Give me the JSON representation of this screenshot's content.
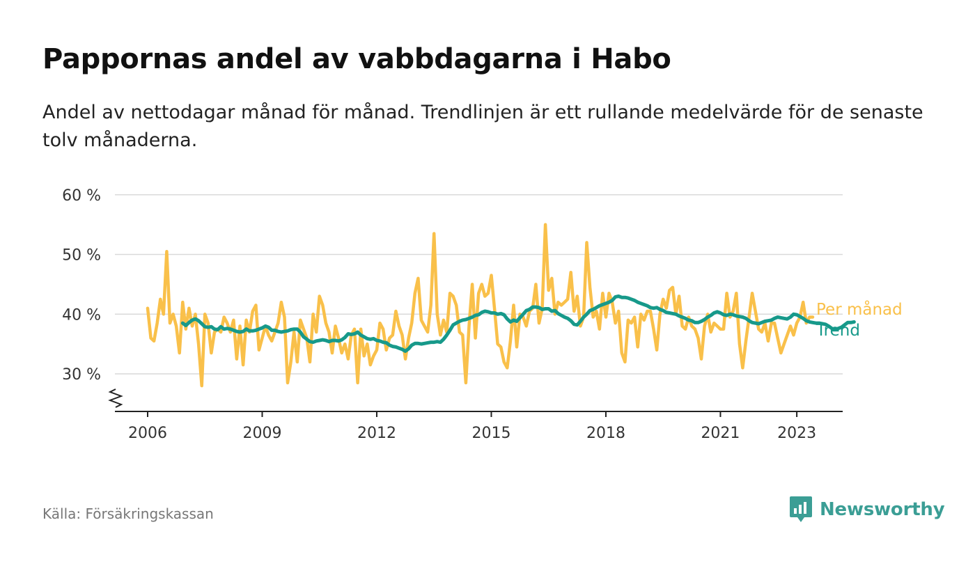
{
  "header": {
    "title": "Pappornas andel av vabbdagarna i Habo",
    "subtitle": "Andel av nettodagar månad för månad. Trendlinjen är ett rullande medelvärde för de senaste tolv månaderna."
  },
  "footer": {
    "source": "Källa: Försäkringskassan",
    "brand": "Newsworthy",
    "brand_icon": "newsworthy-logo-icon"
  },
  "chart_data": {
    "type": "line",
    "x_ticks": [
      "2006",
      "2009",
      "2012",
      "2015",
      "2018",
      "2021",
      "2023"
    ],
    "y_ticks": [
      "30 %",
      "40 %",
      "50 %",
      "60 %"
    ],
    "ylim": [
      25,
      60
    ],
    "y_tick_values": [
      30,
      40,
      50,
      60
    ],
    "y_axis_break": true,
    "grid": true,
    "legend": "line-end labels, right",
    "series": [
      {
        "name": "Per månad",
        "color": "#f9c04a",
        "values": [
          41,
          36,
          35.5,
          38.5,
          42.5,
          40,
          50.5,
          38.5,
          40,
          38,
          33.5,
          42,
          37.5,
          41,
          38,
          40,
          35,
          28,
          40,
          38.5,
          33.5,
          37,
          37.5,
          37,
          39.5,
          38.5,
          37,
          39,
          32.5,
          38,
          31.5,
          39,
          37,
          40.5,
          41.5,
          34,
          36,
          38,
          36.5,
          35.5,
          37,
          38.5,
          42,
          39.5,
          28.5,
          32,
          37,
          32,
          39,
          37.5,
          36,
          32,
          40,
          37,
          43,
          41.5,
          38.5,
          37,
          33.5,
          38,
          36,
          33.5,
          35,
          32.5,
          36.5,
          37.5,
          28.5,
          37.5,
          33,
          35,
          31.5,
          33,
          34,
          38.5,
          37.5,
          34,
          36,
          36.5,
          40.5,
          38,
          36.5,
          32.5,
          36,
          38.5,
          43.5,
          46,
          39,
          38,
          37,
          41.5,
          53.5,
          40,
          36.5,
          39,
          37,
          43.5,
          43,
          41.5,
          37,
          36.5,
          28.5,
          38,
          45,
          36,
          43.5,
          45,
          43,
          43.5,
          46.5,
          41,
          35,
          34.5,
          32,
          31,
          35.5,
          41.5,
          34.5,
          40,
          39.5,
          38,
          40.5,
          41,
          45,
          38.5,
          41,
          55,
          44,
          46,
          40,
          42,
          41.5,
          42,
          42.5,
          47,
          40.5,
          43,
          38,
          39.5,
          52,
          44.5,
          39.5,
          40.5,
          37.5,
          43.5,
          39.5,
          43.5,
          42,
          38.5,
          40.5,
          33.5,
          32,
          39,
          38.5,
          39.5,
          34.5,
          40,
          39,
          40.5,
          40.5,
          37.5,
          34,
          40,
          42.5,
          41,
          44,
          44.5,
          40,
          43,
          38,
          37.5,
          39.5,
          38,
          37.5,
          36,
          32.5,
          38,
          40,
          37,
          38.5,
          38,
          37.5,
          37.5,
          43.5,
          39.5,
          40.5,
          43.5,
          35,
          31,
          35.5,
          39.5,
          43.5,
          40.5,
          37.5,
          37,
          38.5,
          35.5,
          38.5,
          38.5,
          36,
          33.5,
          35,
          36.5,
          38,
          36.5,
          38.5,
          39.5,
          42,
          38.5,
          39.5,
          39.5
        ]
      },
      {
        "name": "Trend",
        "color": "#17998a",
        "values": [
          38.5,
          38.1,
          38.6,
          39.0,
          39.2,
          38.9,
          38.4,
          37.9,
          37.8,
          37.9,
          37.5,
          37.4,
          37.9,
          37.5,
          37.6,
          37.5,
          37.3,
          37.1,
          37.0,
          37.1,
          37.5,
          37.2,
          37.2,
          37.3,
          37.5,
          37.7,
          38.0,
          37.8,
          37.3,
          37.3,
          37.1,
          37.0,
          37.1,
          37.2,
          37.4,
          37.5,
          37.5,
          37.0,
          36.2,
          35.8,
          35.4,
          35.3,
          35.5,
          35.6,
          35.7,
          35.6,
          35.4,
          35.6,
          35.6,
          35.5,
          35.7,
          36.1,
          36.7,
          36.6,
          36.7,
          37.0,
          36.5,
          36.2,
          35.9,
          35.8,
          35.9,
          35.6,
          35.5,
          35.3,
          35.2,
          34.8,
          34.6,
          34.5,
          34.3,
          34.1,
          33.8,
          34.2,
          34.8,
          35.1,
          35.1,
          35.0,
          35.1,
          35.2,
          35.3,
          35.3,
          35.4,
          35.3,
          35.8,
          36.5,
          37.3,
          38.2,
          38.5,
          38.8,
          39.0,
          39.1,
          39.3,
          39.5,
          39.8,
          39.9,
          40.3,
          40.5,
          40.4,
          40.2,
          40.2,
          40.0,
          40.1,
          39.9,
          39.2,
          38.7,
          39.0,
          38.8,
          39.4,
          40.0,
          40.6,
          40.8,
          41.2,
          41.2,
          41.1,
          40.8,
          40.9,
          40.9,
          40.5,
          40.6,
          40.1,
          39.8,
          39.5,
          39.3,
          38.9,
          38.3,
          38.2,
          38.8,
          39.5,
          40.0,
          40.6,
          40.8,
          41.1,
          41.4,
          41.6,
          41.8,
          42.0,
          42.3,
          42.9,
          43.0,
          42.8,
          42.8,
          42.7,
          42.5,
          42.3,
          42.0,
          41.8,
          41.6,
          41.4,
          41.1,
          41.0,
          41.1,
          40.8,
          40.6,
          40.3,
          40.2,
          40.1,
          40.0,
          39.7,
          39.5,
          39.3,
          39.0,
          38.9,
          38.6,
          38.6,
          38.8,
          39.1,
          39.5,
          39.8,
          40.2,
          40.4,
          40.2,
          39.9,
          39.8,
          40.0,
          39.9,
          39.7,
          39.6,
          39.5,
          39.3,
          38.9,
          38.6,
          38.5,
          38.4,
          38.6,
          38.8,
          38.9,
          39.0,
          39.3,
          39.5,
          39.4,
          39.3,
          39.2,
          39.5,
          40.0,
          39.9,
          39.6,
          39.3,
          38.9,
          38.7,
          38.6,
          38.5,
          38.5,
          38.4,
          38.3,
          38.0,
          37.6,
          37.4,
          37.6,
          37.8,
          38.2,
          38.6,
          38.6,
          38.7
        ]
      }
    ]
  }
}
